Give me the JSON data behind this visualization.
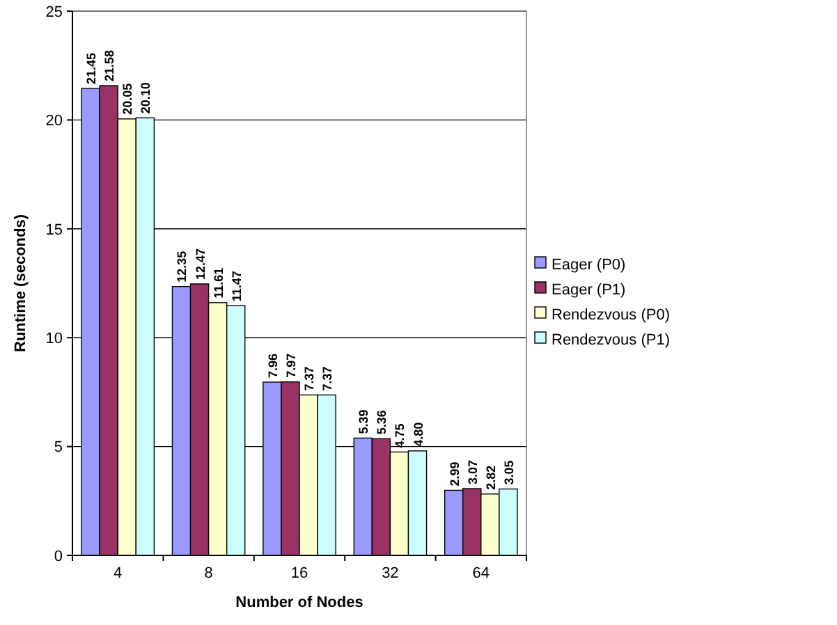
{
  "chart_data": {
    "type": "bar",
    "xlabel": "Number of Nodes",
    "ylabel": "Runtime (seconds)",
    "categories": [
      "4",
      "8",
      "16",
      "32",
      "64"
    ],
    "series": [
      {
        "name": "Eager (P0)",
        "color": "#9999ff",
        "values": [
          21.45,
          12.35,
          7.96,
          5.39,
          2.99
        ]
      },
      {
        "name": "Eager (P1)",
        "color": "#993366",
        "values": [
          21.58,
          12.47,
          7.97,
          5.36,
          3.07
        ]
      },
      {
        "name": "Rendezvous (P0)",
        "color": "#ffffcc",
        "values": [
          20.05,
          11.61,
          7.37,
          4.75,
          2.82
        ]
      },
      {
        "name": "Rendezvous (P1)",
        "color": "#ccffff",
        "values": [
          20.1,
          11.47,
          7.37,
          4.8,
          3.05
        ]
      }
    ],
    "value_labels": [
      [
        "21.45",
        "12.35",
        "7.96",
        "5.39",
        "2.99"
      ],
      [
        "21.58",
        "12.47",
        "7.97",
        "5.36",
        "3.07"
      ],
      [
        "20.05",
        "11.61",
        "7.37",
        "4.75",
        "2.82"
      ],
      [
        "20.10",
        "11.47",
        "7.37",
        "4.80",
        "3.05"
      ]
    ],
    "ylim": [
      0,
      25
    ],
    "yticks": [
      0,
      5,
      10,
      15,
      20,
      25
    ],
    "grid": "y",
    "legend": "right"
  }
}
